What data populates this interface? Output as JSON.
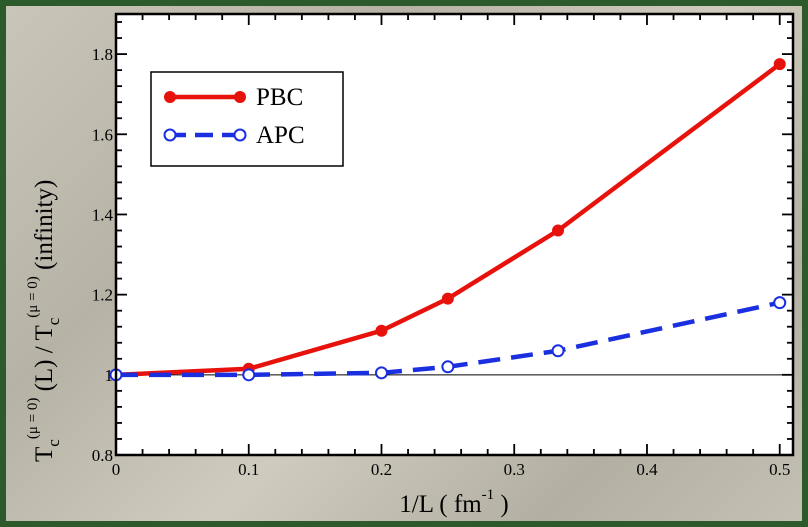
{
  "chart_data": {
    "type": "line",
    "xlabel": "1/L ( fm )",
    "xlabel_main": "1/L ( fm",
    "xlabel_sup": "-1",
    "xlabel_close": " )",
    "ylabel_parts": {
      "t1": "T",
      "sub1": "c",
      "sup1": "(μ = 0)",
      "mid": " (L)  /  T",
      "sub2": "c",
      "sup2": "(μ = 0)",
      "end": " (infinity)"
    },
    "xlim": [
      0,
      0.51
    ],
    "ylim": [
      0.8,
      1.9
    ],
    "x_ticks": [
      0,
      0.1,
      0.2,
      0.3,
      0.4,
      0.5
    ],
    "x_tick_labels": [
      "0",
      "0.1",
      "0.2",
      "0.3",
      "0.4",
      "0.5"
    ],
    "y_ticks": [
      0.8,
      1.0,
      1.2,
      1.4,
      1.6,
      1.8
    ],
    "y_tick_labels": [
      "0.8",
      "1",
      "1.2",
      "1.4",
      "1.6",
      "1.8"
    ],
    "reference_line_y": 1.0,
    "legend_placement": "top-left",
    "series": [
      {
        "name": "PBC",
        "color": "#e8120c",
        "style": "solid",
        "marker": "filled-circle",
        "x": [
          0,
          0.1,
          0.2,
          0.25,
          0.333,
          0.5
        ],
        "y": [
          1.0,
          1.015,
          1.11,
          1.19,
          1.36,
          1.775
        ]
      },
      {
        "name": "APC",
        "color": "#1a2fe0",
        "style": "dashed",
        "marker": "open-circle",
        "x": [
          0,
          0.1,
          0.2,
          0.25,
          0.333,
          0.5
        ],
        "y": [
          1.0,
          1.0,
          1.005,
          1.02,
          1.06,
          1.18
        ]
      }
    ]
  }
}
